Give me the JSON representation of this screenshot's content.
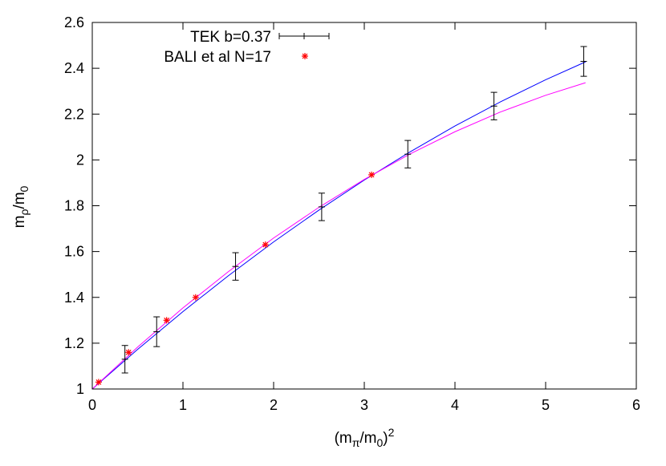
{
  "chart_data": {
    "type": "scatter",
    "xlabel": {
      "base": "(m",
      "sub1": "π",
      "mid": "/m",
      "sub2": "0",
      "end": ")",
      "sup": "2"
    },
    "ylabel": {
      "base": "m",
      "sub1": "ρ",
      "mid": "/m",
      "sub2": "0"
    },
    "xlim": [
      0,
      6
    ],
    "ylim": [
      1,
      2.6
    ],
    "xticks": [
      "0",
      "1",
      "2",
      "3",
      "4",
      "5",
      "6"
    ],
    "yticks": [
      "1",
      "1.2",
      "1.4",
      "1.6",
      "1.8",
      "2",
      "2.2",
      "2.4",
      "2.6"
    ],
    "grid": false,
    "legend_position": "top-left",
    "series": [
      {
        "name": "TEK b=0.37",
        "style": "errorbars",
        "color": "#000000",
        "points": [
          {
            "x": 0.36,
            "y": 1.13,
            "err": 0.06
          },
          {
            "x": 0.71,
            "y": 1.25,
            "err": 0.065
          },
          {
            "x": 1.58,
            "y": 1.535,
            "err": 0.06
          },
          {
            "x": 2.53,
            "y": 1.795,
            "err": 0.06
          },
          {
            "x": 3.48,
            "y": 2.025,
            "err": 0.06
          },
          {
            "x": 4.43,
            "y": 2.235,
            "err": 0.06
          },
          {
            "x": 5.42,
            "y": 2.43,
            "err": 0.065
          }
        ]
      },
      {
        "name": "BALI et al N=17",
        "style": "stars",
        "color": "#ff0000",
        "points": [
          {
            "x": 0.07,
            "y": 1.03
          },
          {
            "x": 0.4,
            "y": 1.16
          },
          {
            "x": 0.82,
            "y": 1.3
          },
          {
            "x": 1.14,
            "y": 1.4
          },
          {
            "x": 1.91,
            "y": 1.63
          },
          {
            "x": 3.08,
            "y": 1.935
          }
        ]
      },
      {
        "style": "line",
        "color": "#0000ff",
        "x": [
          0,
          0.5,
          1,
          1.5,
          2,
          2.5,
          3,
          3.5,
          4,
          4.5,
          5,
          5.44
        ],
        "y": [
          1,
          1.173,
          1.338,
          1.494,
          1.642,
          1.781,
          1.912,
          2.034,
          2.148,
          2.253,
          2.35,
          2.428
        ]
      },
      {
        "style": "line",
        "color": "#ff00ff",
        "x": [
          0,
          0.5,
          1,
          1.5,
          2,
          2.5,
          3,
          3.5,
          4,
          4.5,
          5,
          5.44
        ],
        "y": [
          1,
          1.183,
          1.354,
          1.512,
          1.659,
          1.793,
          1.915,
          2.025,
          2.123,
          2.209,
          2.282,
          2.337
        ]
      }
    ]
  }
}
